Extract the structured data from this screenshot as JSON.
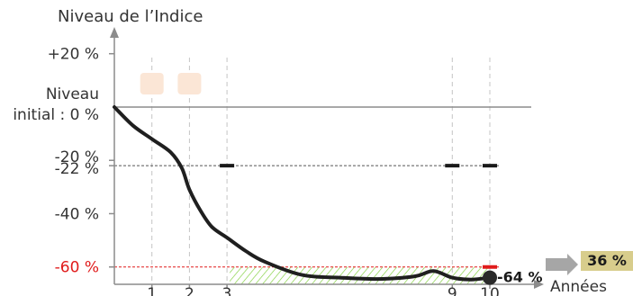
{
  "chart_data": {
    "type": "line",
    "title": "",
    "ylabel": "Niveau de l’Indice",
    "xlabel": "Années",
    "xlim": [
      0,
      10
    ],
    "ylim": [
      -66.5,
      28
    ],
    "yticks": [
      {
        "value": 20,
        "label": "+20 %",
        "color": "#333333"
      },
      {
        "value": -20,
        "label": "-20 %",
        "color": "#333333"
      },
      {
        "value": -22,
        "label": "-22 %",
        "color": "#333333"
      },
      {
        "value": -40,
        "label": "-40 %",
        "color": "#333333"
      },
      {
        "value": -60,
        "label": "-60 %",
        "color": "#e01b1b"
      }
    ],
    "initial_level_label": [
      "Niveau",
      "initial : 0 %"
    ],
    "initial_level": 0,
    "xticks": [
      {
        "value": 1,
        "label": "1"
      },
      {
        "value": 2,
        "label": "2"
      },
      {
        "value": 3,
        "label": "3"
      },
      {
        "value": 9,
        "label": "9"
      },
      {
        "value": 10,
        "label": "10"
      }
    ],
    "guides": {
      "coupon_barrier": -22,
      "capital_barrier": -60
    },
    "series": [
      {
        "points": [
          [
            0,
            0
          ],
          [
            0.5,
            -7
          ],
          [
            1,
            -12
          ],
          [
            1.5,
            -17
          ],
          [
            1.8,
            -23
          ],
          [
            2,
            -31
          ],
          [
            2.3,
            -39
          ],
          [
            2.6,
            -45
          ],
          [
            3,
            -49
          ],
          [
            3.5,
            -54
          ],
          [
            4,
            -58
          ],
          [
            5,
            -63
          ],
          [
            6,
            -64
          ],
          [
            7,
            -64.5
          ],
          [
            8,
            -63.5
          ],
          [
            8.5,
            -61.5
          ],
          [
            9,
            -64
          ],
          [
            9.5,
            -64.7
          ],
          [
            10,
            -64
          ]
        ]
      }
    ],
    "markers": [
      {
        "x": 10,
        "y": -64,
        "label": "-64 %"
      }
    ],
    "observation_marks": [
      {
        "x": 3,
        "y": -22,
        "color": "#1a1a1a"
      },
      {
        "x": 9,
        "y": -22,
        "color": "#1a1a1a"
      },
      {
        "x": 10,
        "y": -22,
        "color": "#1a1a1a"
      },
      {
        "x": 10,
        "y": -60,
        "color": "#e01b1b"
      }
    ],
    "result_box": {
      "label": "36 %",
      "color": "#d8cd8c"
    },
    "colors": {
      "series": "#1f1f1f",
      "barrier": "#e01b1b",
      "hatch": "#7fcf3a",
      "pale_box": "#fbe6d6",
      "arrow": "#a6a6a6"
    }
  }
}
